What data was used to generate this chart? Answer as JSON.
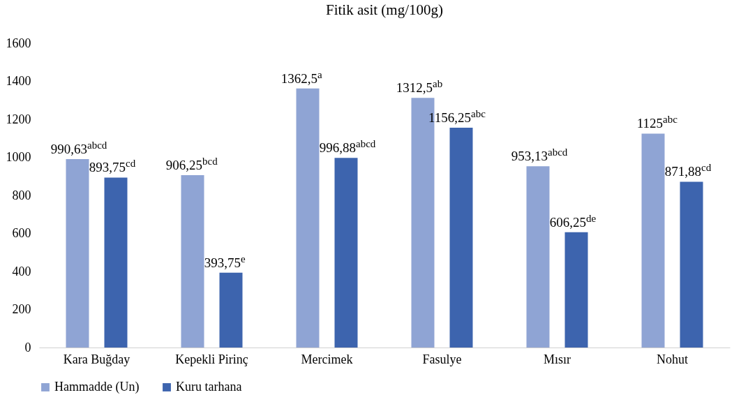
{
  "chart_data": {
    "type": "bar",
    "title": "Fitik asit (mg/100g)",
    "categories": [
      "Kara Buğday",
      "Kepekli Pirinç",
      "Mercimek",
      "Fasulye",
      "Mısır",
      "Nohut"
    ],
    "series": [
      {
        "name": "Hammadde (Un)",
        "color": "#8fa4d4",
        "values": [
          990.63,
          906.25,
          1362.5,
          1312.5,
          953.13,
          1125
        ],
        "value_labels": [
          "990,63$^{abcd}$",
          "906,25$^{bcd}$",
          "1362,5$^{a}$",
          "1312,5$^{ab}$",
          "953,13$^{abcd}$",
          "1125$^{abc}$"
        ]
      },
      {
        "name": "Kuru tarhana",
        "color": "#3d64ae",
        "values": [
          893.75,
          393.75,
          996.88,
          1156.25,
          606.25,
          871.88
        ],
        "value_labels": [
          "893,75$^{cd}$",
          "393,75$^{e}$",
          "996,88$^{abcd}$",
          "1156,25$^{abc}$",
          "606,25$^{de}$",
          "871,88$^{cd}$"
        ]
      }
    ],
    "ylim": [
      0,
      1600
    ],
    "yticks": [
      0,
      200,
      400,
      600,
      800,
      1000,
      1200,
      1400,
      1600
    ],
    "grid": false,
    "legend": "bottom"
  }
}
